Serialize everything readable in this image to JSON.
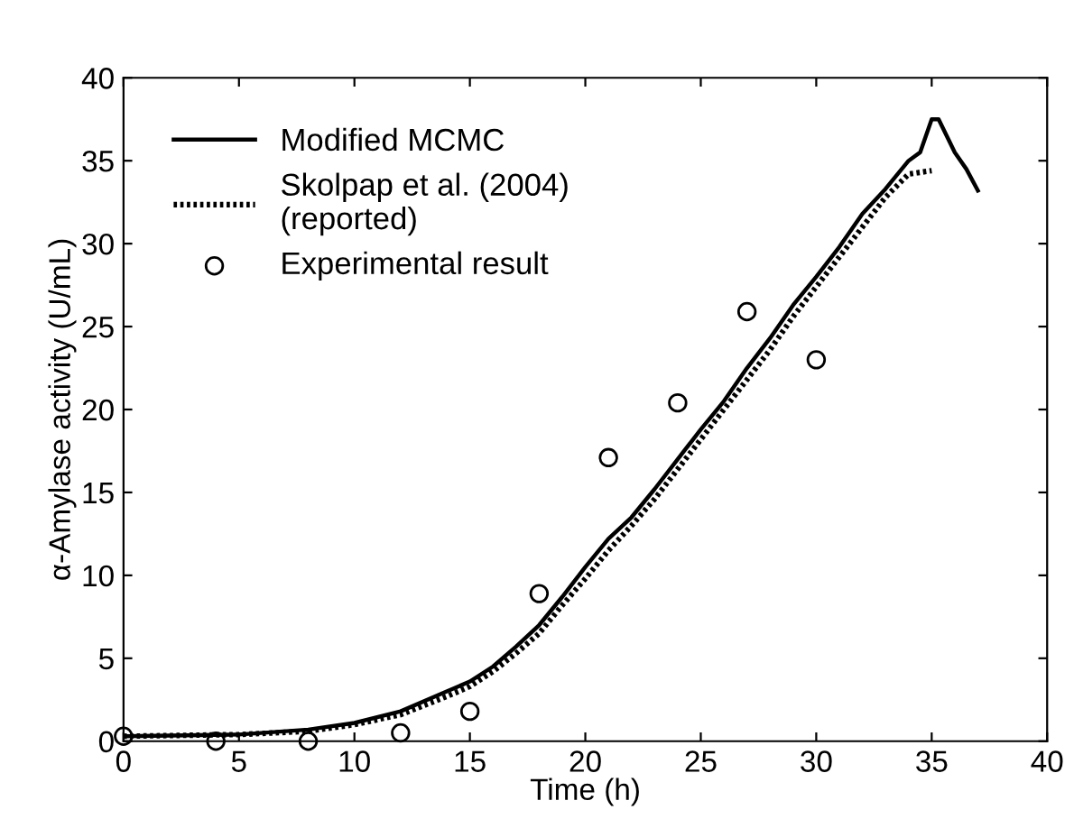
{
  "chart_data": {
    "type": "line",
    "xlabel": "Time (h)",
    "ylabel": "α-Amylase activity (U/mL)",
    "xlim": [
      0,
      40
    ],
    "xticks": [
      0,
      5,
      10,
      15,
      20,
      25,
      30,
      35,
      40
    ],
    "ylim": [
      0,
      40
    ],
    "yticks": [
      0,
      5,
      10,
      15,
      20,
      25,
      30,
      35,
      40
    ],
    "grid": false,
    "legend": "top left",
    "series": [
      {
        "name": "Modified MCMC",
        "color": "#000000",
        "line_style": "solid",
        "marker": "none",
        "x": [
          0,
          5,
          8,
          10,
          12,
          14,
          15,
          16,
          17,
          18,
          19,
          20,
          21,
          22,
          23,
          24,
          25,
          26,
          27,
          28,
          29,
          30,
          31,
          32,
          33,
          34,
          34.5,
          35,
          35.3,
          36,
          36.5,
          37
        ],
        "values": [
          0.3,
          0.4,
          0.7,
          1.1,
          1.8,
          3,
          3.6,
          4.5,
          5.7,
          7,
          8.7,
          10.5,
          12.2,
          13.5,
          15.2,
          17,
          18.8,
          20.5,
          22.5,
          24.3,
          26.3,
          28,
          29.8,
          31.8,
          33.3,
          35,
          35.5,
          37.5,
          37.5,
          35.5,
          34.5,
          33.2
        ]
      },
      {
        "name": "Skolpap et al. (2004)\n(reported)",
        "color": "#000000",
        "line_style": "dotted",
        "marker": "none",
        "x": [
          0,
          5,
          8,
          10,
          12,
          14,
          15,
          16,
          17,
          18,
          19,
          20,
          21,
          22,
          23,
          24,
          25,
          26,
          27,
          28,
          29,
          30,
          31,
          32,
          33,
          34,
          35
        ],
        "values": [
          0.3,
          0.4,
          0.6,
          1,
          1.6,
          2.7,
          3.3,
          4.2,
          5.3,
          6.5,
          8.2,
          9.8,
          11.5,
          13,
          14.6,
          16.4,
          18.2,
          20,
          21.8,
          23.6,
          25.6,
          27.4,
          29.2,
          31,
          32.8,
          34.2,
          34.4
        ]
      },
      {
        "name": "Experimental result",
        "type": "scatter",
        "color": "#000000",
        "marker": "circle",
        "x": [
          0,
          4,
          8,
          12,
          15,
          18,
          21,
          24,
          27,
          30
        ],
        "values": [
          0.3,
          0,
          0,
          0.5,
          1.8,
          8.9,
          17.1,
          20.4,
          25.9,
          23
        ]
      }
    ]
  }
}
